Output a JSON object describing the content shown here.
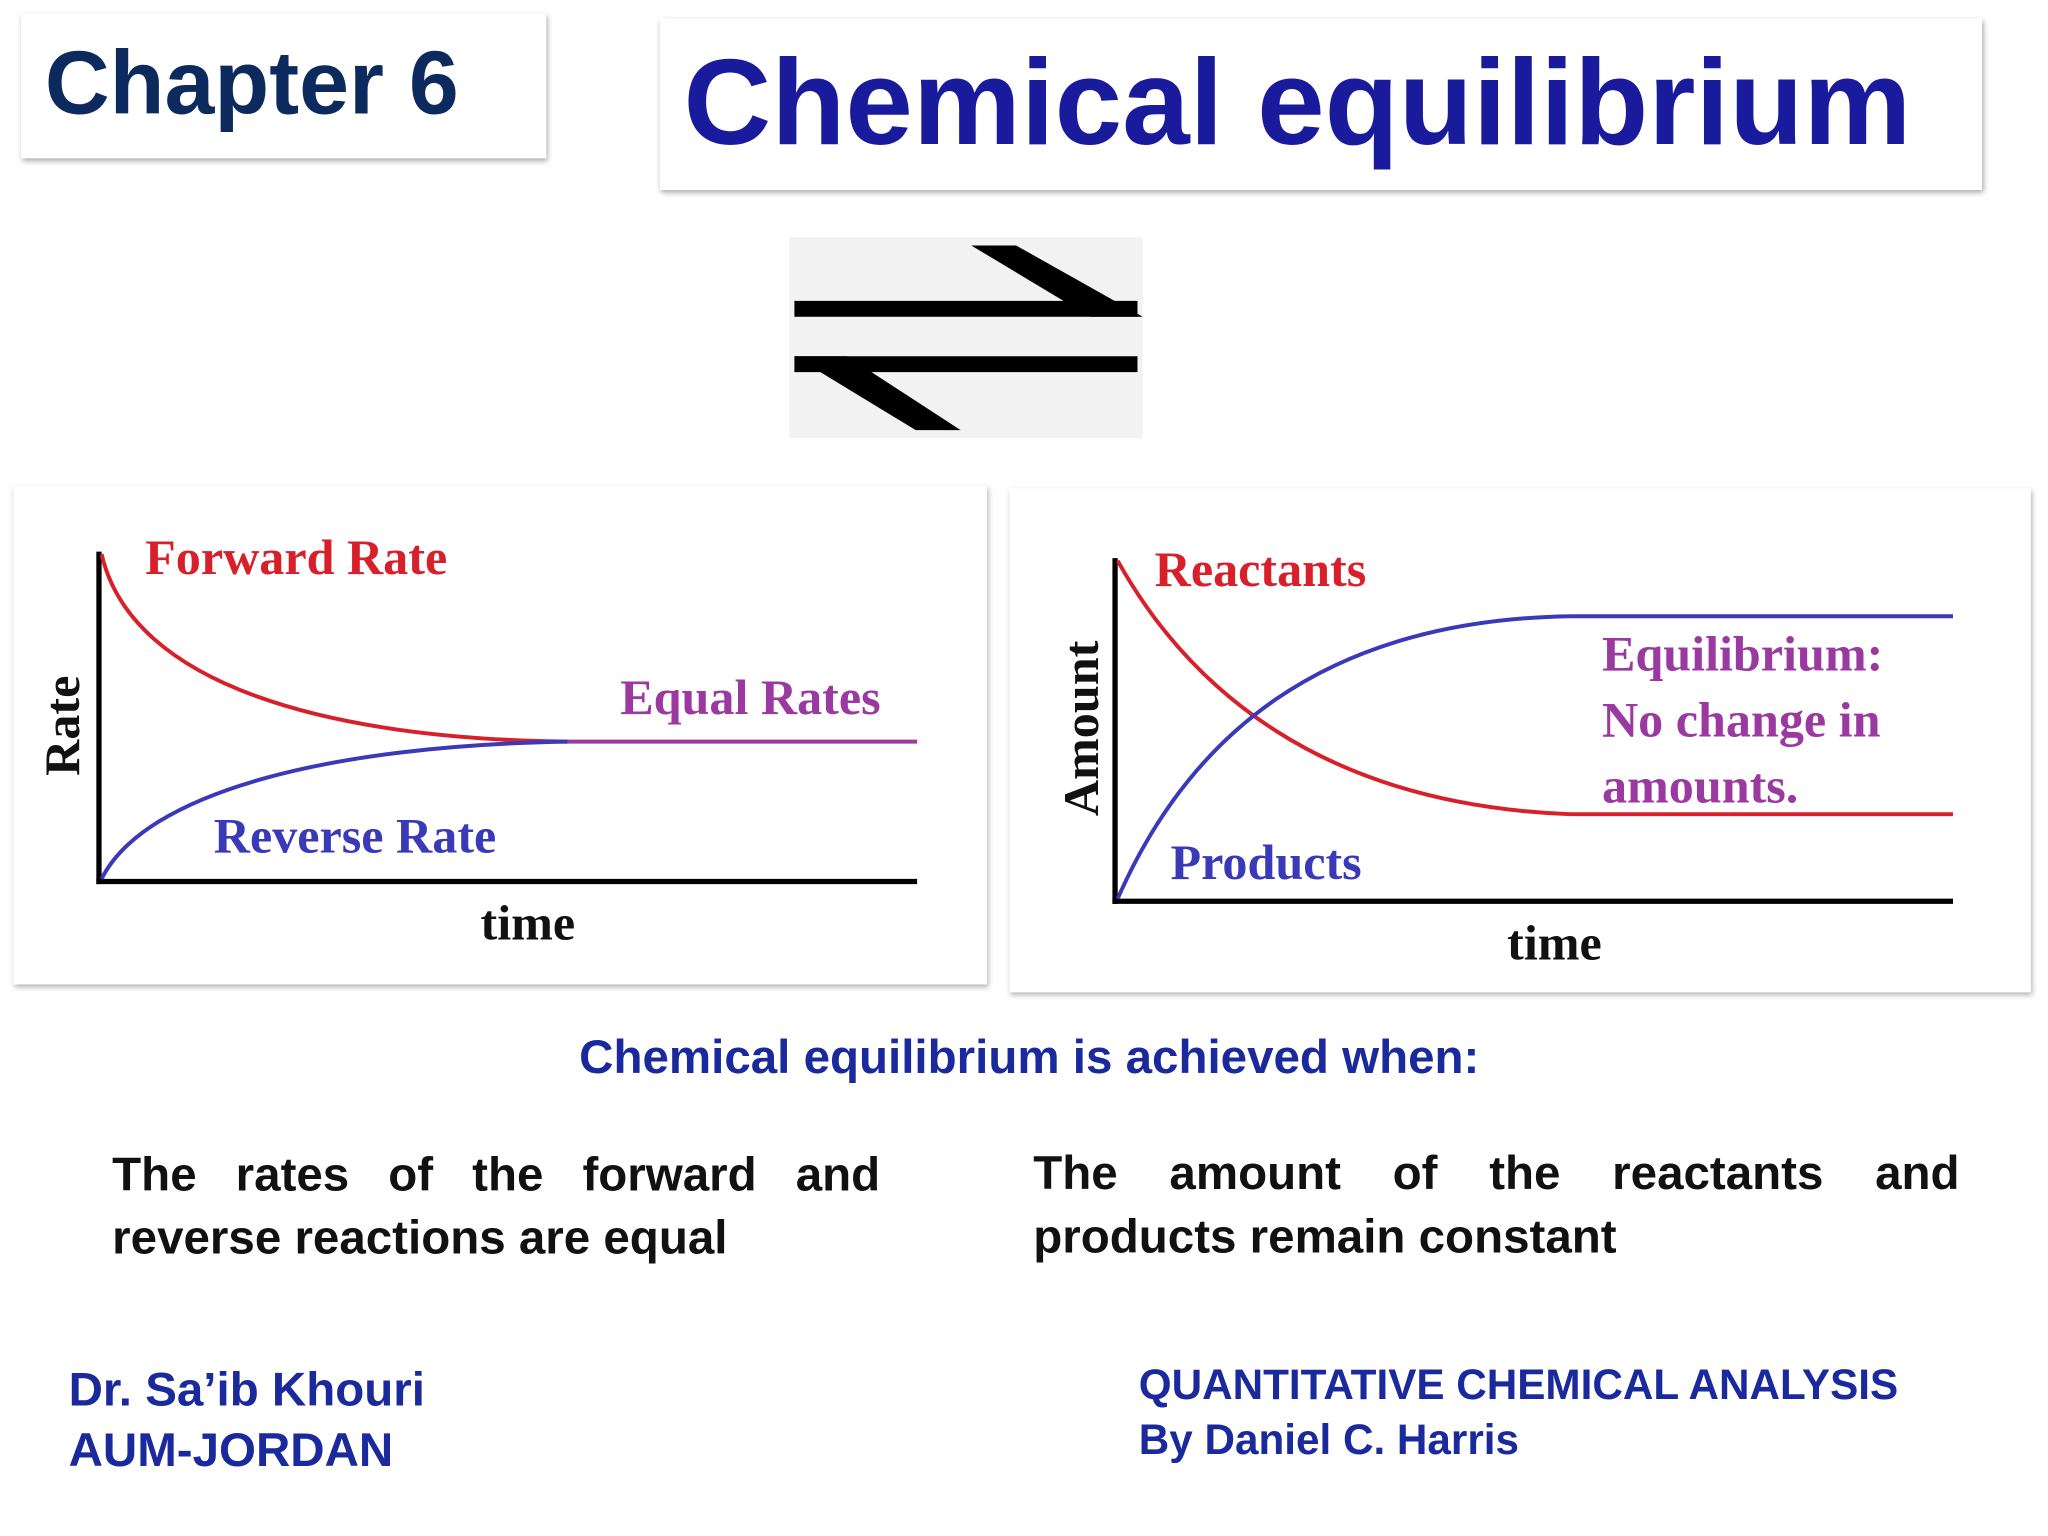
{
  "header": {
    "chapter": "Chapter 6",
    "title": "Chemical equilibrium"
  },
  "rate_diagram": {
    "forward_label": "Forward Rate",
    "equal_label": "Equal Rates",
    "reverse_label": "Reverse Rate",
    "y_label": "Rate",
    "x_label": "time"
  },
  "amount_diagram": {
    "reactants_label": "Reactants",
    "equilibrium_label": [
      "Equilibrium:",
      "No change in",
      "amounts."
    ],
    "products_label": "Products",
    "y_label": "Amount",
    "x_label": "time"
  },
  "conditions": {
    "heading": "Chemical equilibrium is achieved when:",
    "items": [
      "The rates of the forward and reverse reactions are equal",
      "The amount of the reactants and products remain constant"
    ]
  },
  "footer": {
    "author": [
      "Dr. Sa’ib Khouri",
      "AUM-JORDAN"
    ],
    "book": [
      "QUANTITATIVE CHEMICAL ANALYSIS",
      "By Daniel C. Harris"
    ]
  }
}
